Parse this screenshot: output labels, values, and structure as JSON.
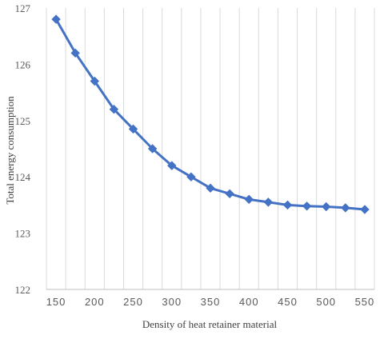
{
  "chart_data": {
    "type": "line",
    "xlabel": "Density of heat retainer material",
    "ylabel": "Total energy consumption",
    "ylim": [
      122,
      127
    ],
    "yticks": [
      "122",
      "123",
      "124",
      "125",
      "126",
      "127"
    ],
    "xticks": [
      "150",
      "200",
      "250",
      "300",
      "350",
      "400",
      "450",
      "500",
      "550"
    ],
    "grid": "vertical",
    "marker": "diamond",
    "series_color": "#4472C4",
    "grid_color": "#D9D9D9",
    "series": [
      {
        "x": [
          150,
          175,
          200,
          225,
          250,
          275,
          300,
          325,
          350,
          375,
          400,
          425,
          450,
          475,
          500,
          525,
          550
        ],
        "values": [
          126.8,
          126.2,
          125.7,
          125.2,
          124.85,
          124.5,
          124.2,
          124.0,
          123.8,
          123.7,
          123.6,
          123.55,
          123.5,
          123.48,
          123.47,
          123.45,
          123.42
        ]
      }
    ]
  }
}
